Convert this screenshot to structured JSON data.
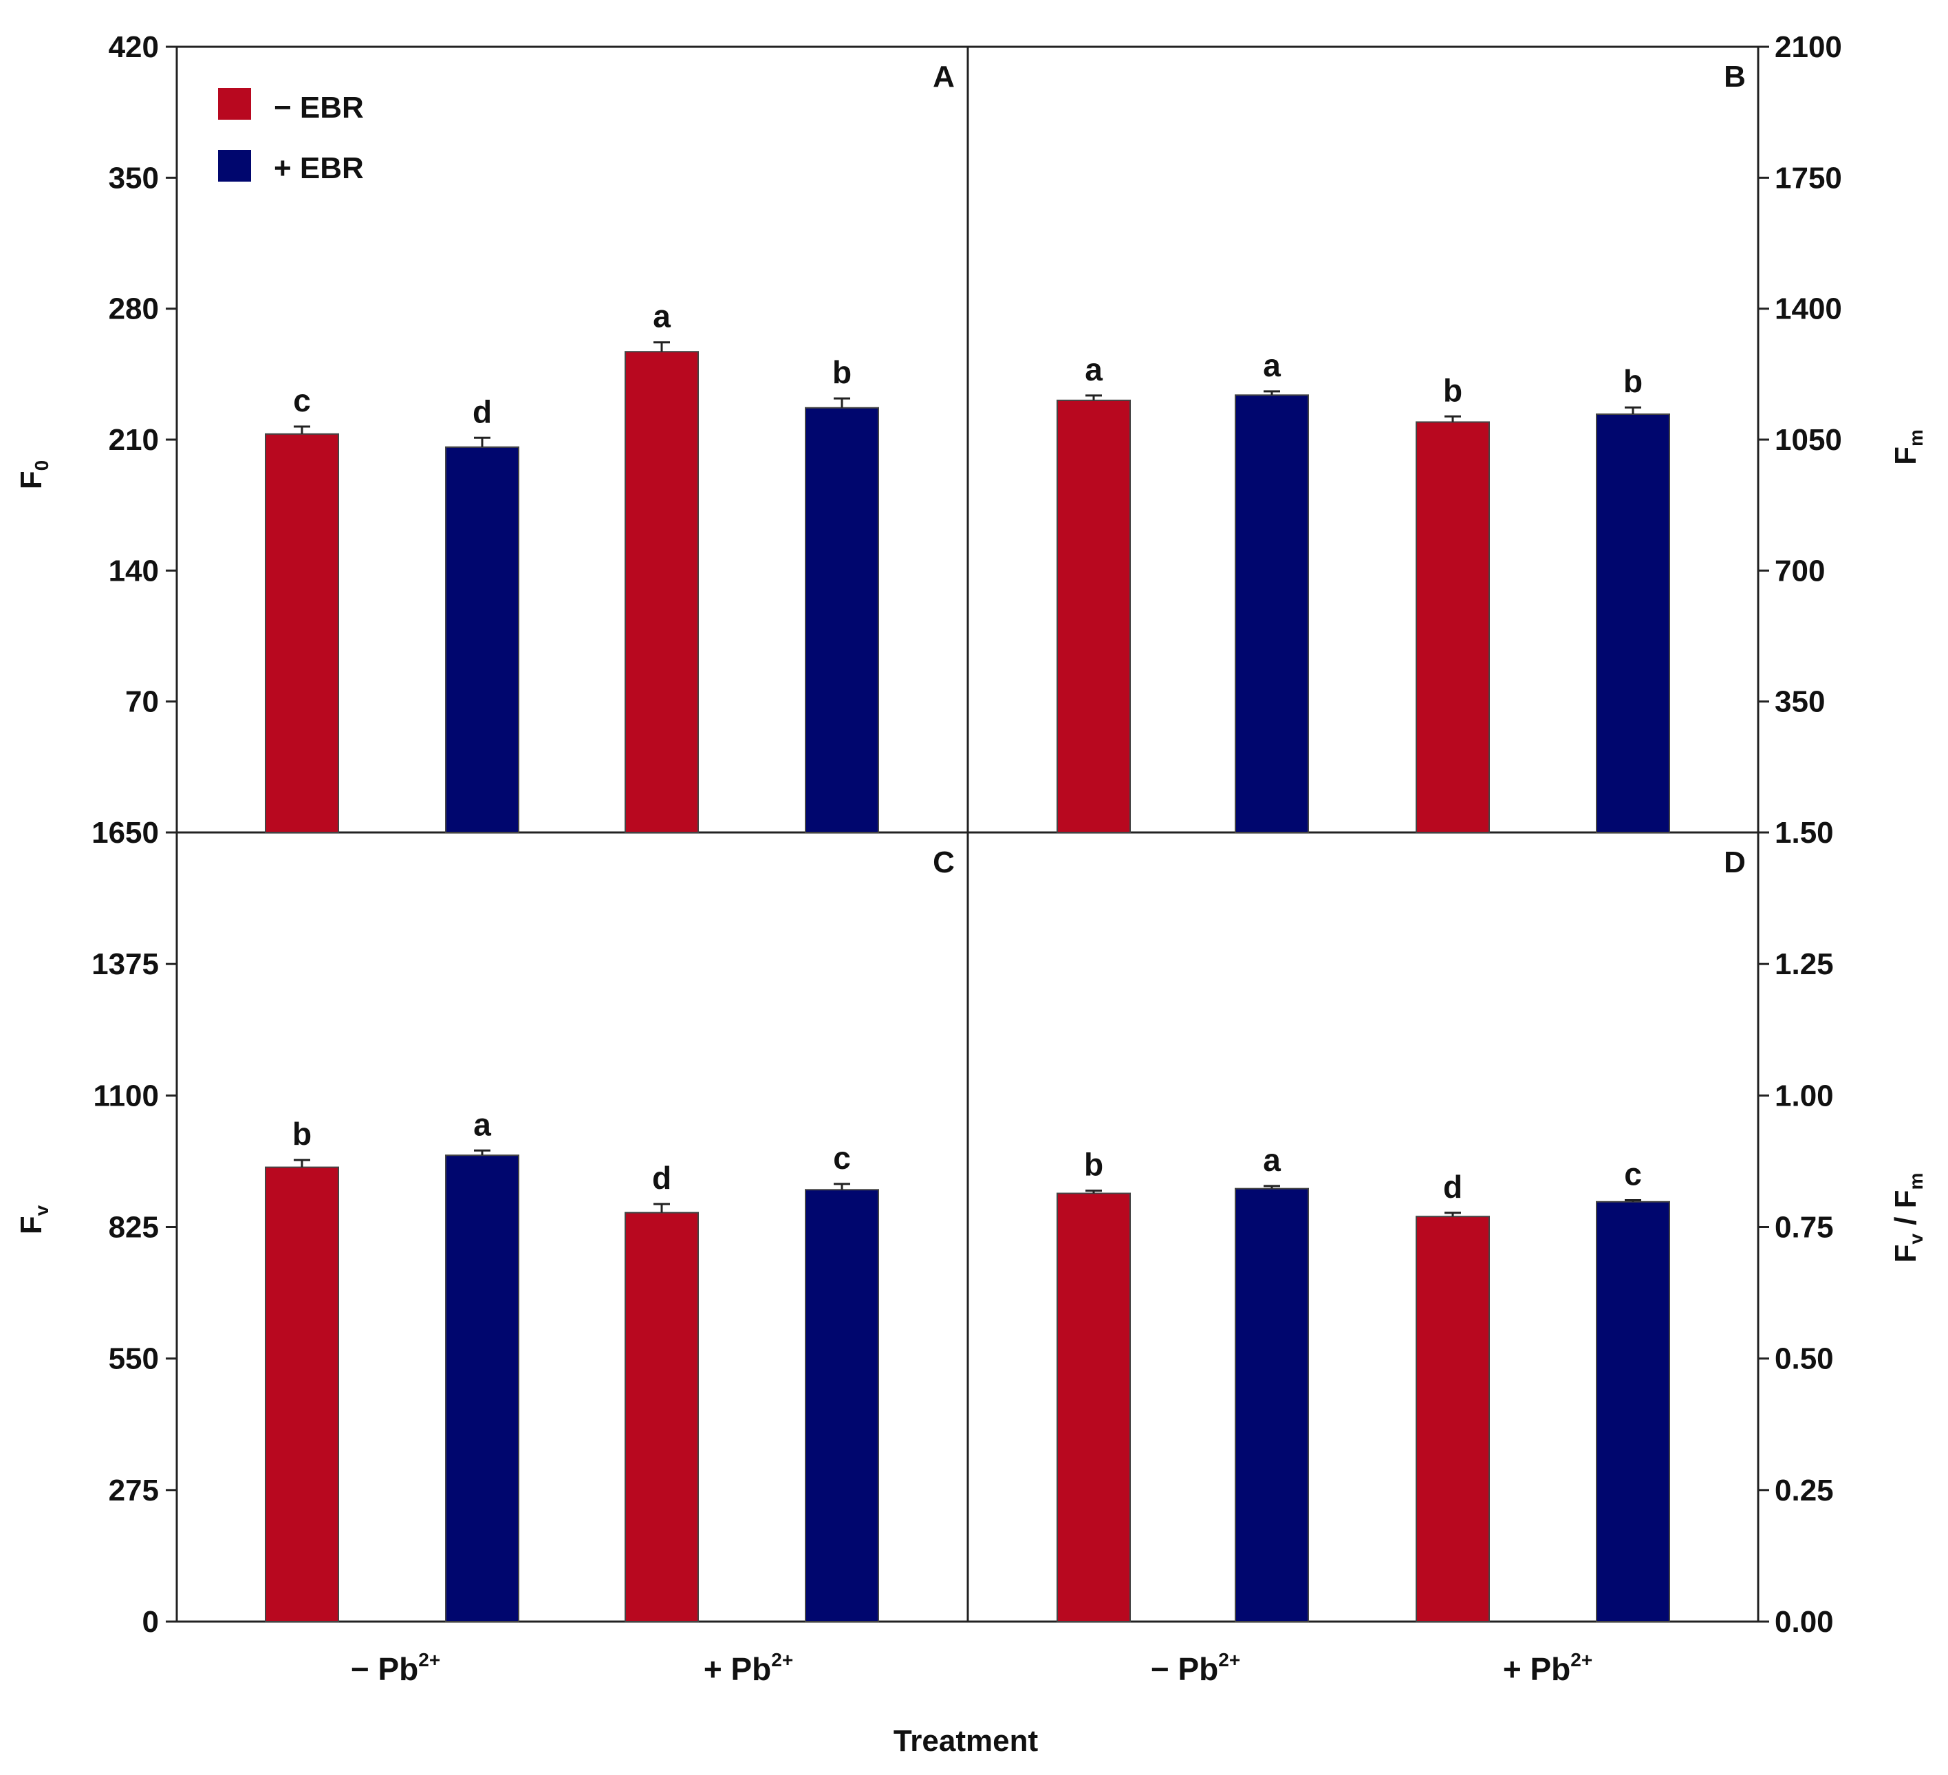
{
  "colors": {
    "minus_ebr": "#B8081F",
    "plus_ebr": "#00066E"
  },
  "legend": [
    {
      "label": "− EBR",
      "series": "minus_ebr"
    },
    {
      "label": "+ EBR",
      "series": "plus_ebr"
    }
  ],
  "x_axis": {
    "title": "Treatment",
    "groups": [
      {
        "prefix": "− Pb",
        "sup": "2+"
      },
      {
        "prefix": "+ Pb",
        "sup": "2+"
      }
    ]
  },
  "chart_data": [
    {
      "panel": "A",
      "type": "bar",
      "ylabel": {
        "main": "F",
        "sub": "0"
      },
      "ylim": [
        0,
        420
      ],
      "ticks": [
        "420",
        "350",
        "280",
        "210",
        "140",
        "70"
      ],
      "categories": [
        "− Pb2+",
        "+ Pb2+"
      ],
      "series": [
        {
          "name": "− EBR",
          "values": [
            213,
            257
          ],
          "errors": [
            4,
            5
          ],
          "letters": [
            "c",
            "a"
          ]
        },
        {
          "name": "+ EBR",
          "values": [
            206,
            227
          ],
          "errors": [
            5,
            5
          ],
          "letters": [
            "d",
            "b"
          ]
        }
      ]
    },
    {
      "panel": "B",
      "type": "bar",
      "ylabel": {
        "main": "F",
        "sub": "m"
      },
      "ylim": [
        0,
        2100
      ],
      "ticks": [
        "2100",
        "1750",
        "1400",
        "1050",
        "700",
        "350"
      ],
      "categories": [
        "− Pb2+",
        "+ Pb2+"
      ],
      "series": [
        {
          "name": "− EBR",
          "values": [
            1155,
            1097
          ],
          "errors": [
            13,
            15
          ],
          "letters": [
            "a",
            "b"
          ]
        },
        {
          "name": "+ EBR",
          "values": [
            1169,
            1118
          ],
          "errors": [
            10,
            18
          ],
          "letters": [
            "a",
            "b"
          ]
        }
      ]
    },
    {
      "panel": "C",
      "type": "bar",
      "ylabel": {
        "main": "F",
        "sub": "v"
      },
      "ylim": [
        0,
        1650
      ],
      "ticks": [
        "1650",
        "1375",
        "1100",
        "825",
        "550",
        "275",
        "0"
      ],
      "categories": [
        "− Pb2+",
        "+ Pb2+"
      ],
      "series": [
        {
          "name": "− EBR",
          "values": [
            950,
            855
          ],
          "errors": [
            15,
            18
          ],
          "letters": [
            "b",
            "d"
          ]
        },
        {
          "name": "+ EBR",
          "values": [
            975,
            903
          ],
          "errors": [
            10,
            12
          ],
          "letters": [
            "a",
            "c"
          ]
        }
      ]
    },
    {
      "panel": "D",
      "type": "bar",
      "ylabel": {
        "main": "F",
        "sub1": "v",
        "mid": " / F",
        "sub2": "m"
      },
      "ylim": [
        0,
        1.5
      ],
      "ticks": [
        "1.50",
        "1.25",
        "1.00",
        "0.75",
        "0.50",
        "0.25",
        "0.00"
      ],
      "categories": [
        "− Pb2+",
        "+ Pb2+"
      ],
      "series": [
        {
          "name": "− EBR",
          "values": [
            0.814,
            0.77
          ],
          "errors": [
            0.005,
            0.007
          ],
          "letters": [
            "b",
            "d"
          ]
        },
        {
          "name": "+ EBR",
          "values": [
            0.823,
            0.798
          ],
          "errors": [
            0.005,
            0.003
          ],
          "letters": [
            "a",
            "c"
          ]
        }
      ]
    }
  ]
}
